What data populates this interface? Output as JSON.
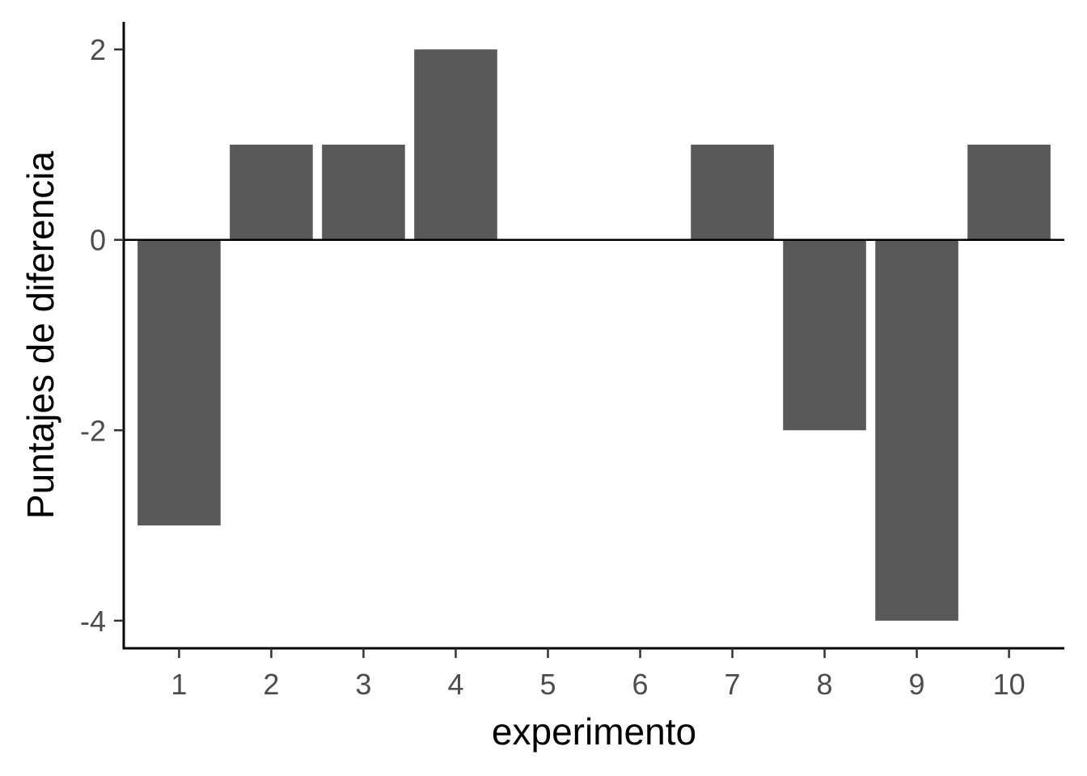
{
  "chart_data": {
    "type": "bar",
    "categories": [
      "1",
      "2",
      "3",
      "4",
      "5",
      "6",
      "7",
      "8",
      "9",
      "10"
    ],
    "values": [
      -3,
      1,
      1,
      2,
      0,
      0,
      1,
      -2,
      -4,
      1
    ],
    "xlabel": "experimento",
    "ylabel": "Puntajes de diferencia",
    "ylim": [
      -4.29,
      2.29
    ],
    "yticks": [
      -4,
      -2,
      0,
      2
    ],
    "ytick_labels": [
      "-4",
      "-2",
      "0",
      "2"
    ],
    "reference_line": 0,
    "grid": false,
    "legend": "none",
    "colors": {
      "bar": "#595959",
      "axis": "#000000",
      "tick_label": "#4d4d4d",
      "background": "#ffffff"
    }
  }
}
